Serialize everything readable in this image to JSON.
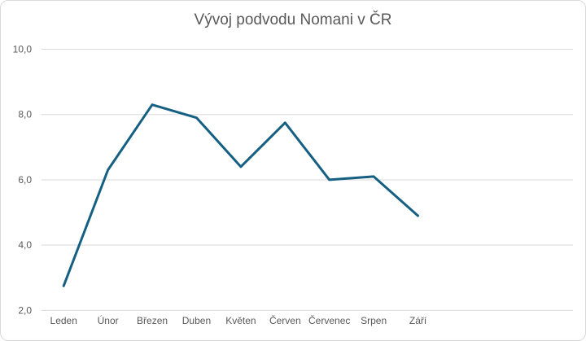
{
  "chart_data": {
    "type": "line",
    "title": "Vývoj podvodu Nomani v ČR",
    "categories": [
      "Leden",
      "Únor",
      "Březen",
      "Duben",
      "Květen",
      "Červen",
      "Červenec",
      "Srpen",
      "Září"
    ],
    "values": [
      2.75,
      6.3,
      8.3,
      7.9,
      6.4,
      7.75,
      6.0,
      6.1,
      4.9
    ],
    "xlabel": "",
    "ylabel": "",
    "ylim": [
      2,
      10
    ],
    "ytick_step": 2,
    "ytick_labels": [
      "2,0",
      "4,0",
      "6,0",
      "8,0",
      "10,0"
    ],
    "x_slots": 12,
    "grid": true,
    "legend": "none",
    "line_color": "#156082",
    "gridline_color": "#d9d9d9",
    "text_color": "#595959",
    "background": "#ffffff"
  }
}
